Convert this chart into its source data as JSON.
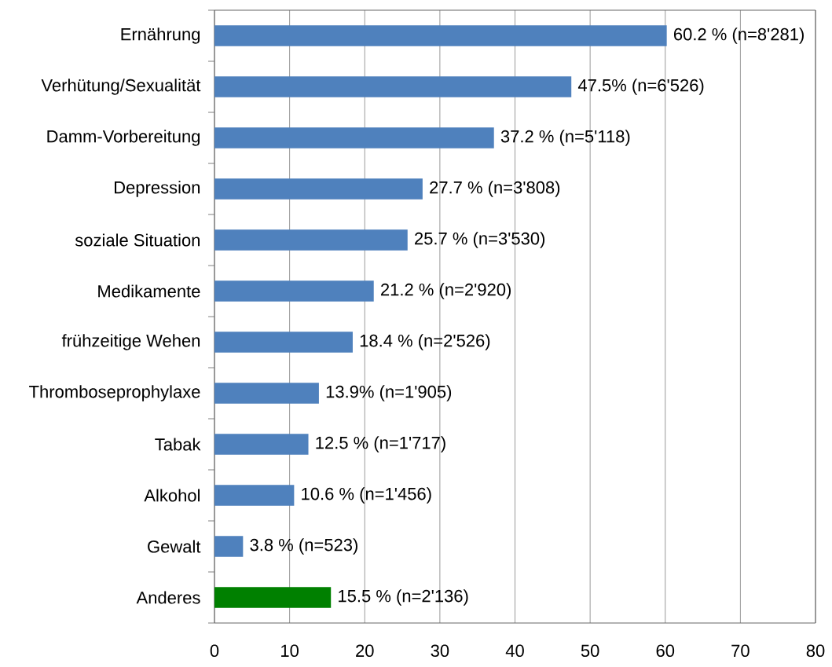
{
  "chart_data": {
    "type": "bar",
    "orientation": "horizontal",
    "categories": [
      "Ernährung",
      "Verhütung/Sexualität",
      "Damm-Vorbereitung",
      "Depression",
      "soziale Situation",
      "Medikamente",
      "frühzeitige Wehen",
      "Thromboseprophylaxe",
      "Tabak",
      "Alkohol",
      "Gewalt",
      "Anderes"
    ],
    "values": [
      60.2,
      47.5,
      37.2,
      27.7,
      25.7,
      21.2,
      18.4,
      13.9,
      12.5,
      10.6,
      3.8,
      15.5
    ],
    "colors": [
      "#4f81bd",
      "#4f81bd",
      "#4f81bd",
      "#4f81bd",
      "#4f81bd",
      "#4f81bd",
      "#4f81bd",
      "#4f81bd",
      "#4f81bd",
      "#4f81bd",
      "#4f81bd",
      "#008000"
    ],
    "value_labels": [
      "60.2 % (n=8'281)",
      "47.5% (n=6'526)",
      "37.2 % (n=5'118)",
      "27.7 % (n=3'808)",
      "25.7 % (n=3'530)",
      "21.2 % (n=2'920)",
      "18.4 % (n=2'526)",
      "13.9% (n=1'905)",
      "12.5 % (n=1'717)",
      "10.6 % (n=1'456)",
      "3.8 % (n=523)",
      "15.5 % (n=2'136)"
    ],
    "xlim": [
      0,
      80
    ],
    "xticks": [
      0,
      10,
      20,
      30,
      40,
      50,
      60,
      70,
      80
    ],
    "grid": "x"
  }
}
